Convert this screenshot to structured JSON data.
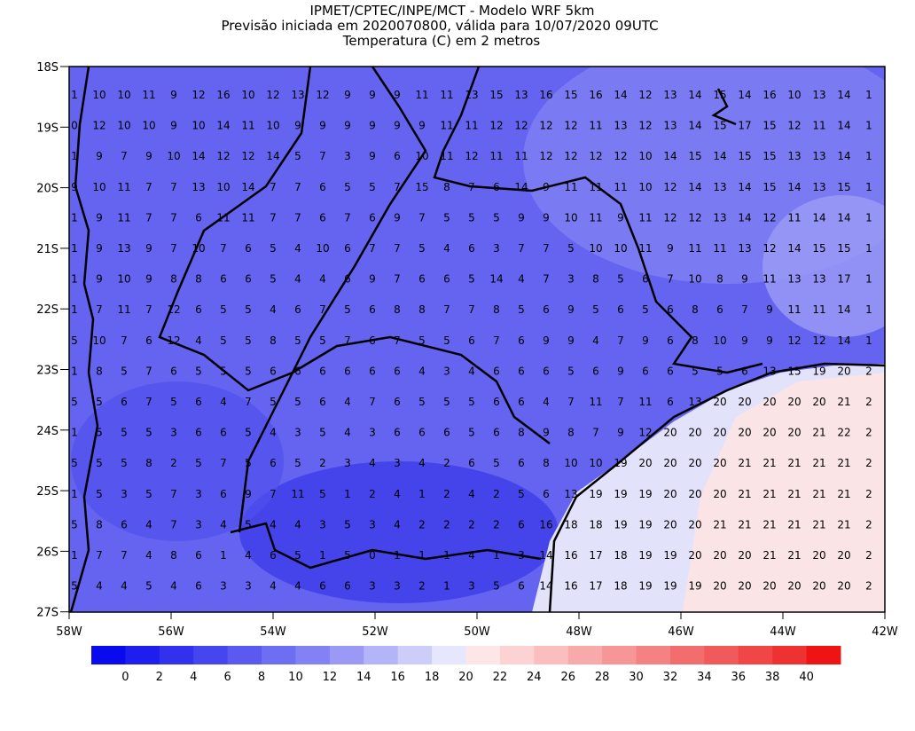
{
  "header": {
    "line1": "IPMET/CPTEC/INPE/MCT - Modelo WRF 5km",
    "line2": "Previsão iniciada em 2020070800, válida para 10/07/2020 09UTC",
    "line3": "Temperatura (C) em 2 metros"
  },
  "map": {
    "lat_labels": [
      "18S",
      "19S",
      "20S",
      "21S",
      "22S",
      "23S",
      "24S",
      "25S",
      "26S",
      "27S"
    ],
    "lon_labels": [
      "58W",
      "56W",
      "54W",
      "52W",
      "50W",
      "48W",
      "46W",
      "44W",
      "42W"
    ],
    "grid_values": [
      [
        1,
        10,
        10,
        11,
        9,
        12,
        16,
        10,
        12,
        13,
        12,
        9,
        9,
        9,
        11,
        11,
        13,
        15,
        13,
        16,
        15,
        16,
        14,
        12,
        13,
        14,
        15,
        14,
        16,
        10,
        13,
        14,
        1
      ],
      [
        0,
        12,
        10,
        10,
        9,
        10,
        14,
        11,
        10,
        9,
        9,
        9,
        9,
        9,
        9,
        11,
        11,
        12,
        12,
        12,
        12,
        11,
        13,
        12,
        13,
        14,
        15,
        17,
        15,
        12,
        11,
        14,
        1
      ],
      [
        1,
        9,
        7,
        9,
        10,
        14,
        12,
        12,
        14,
        5,
        7,
        3,
        9,
        6,
        10,
        11,
        12,
        11,
        11,
        12,
        12,
        12,
        12,
        10,
        14,
        15,
        14,
        15,
        15,
        13,
        13,
        14,
        1
      ],
      [
        9,
        10,
        11,
        7,
        7,
        13,
        10,
        14,
        7,
        7,
        6,
        5,
        5,
        7,
        15,
        8,
        7,
        6,
        14,
        9,
        11,
        11,
        11,
        10,
        12,
        14,
        13,
        14,
        15,
        14,
        13,
        15,
        1
      ],
      [
        1,
        9,
        11,
        7,
        7,
        6,
        11,
        11,
        7,
        7,
        6,
        7,
        6,
        9,
        7,
        5,
        5,
        5,
        9,
        9,
        10,
        11,
        9,
        11,
        12,
        12,
        13,
        14,
        12,
        11,
        14,
        14,
        1
      ],
      [
        1,
        9,
        13,
        9,
        7,
        10,
        7,
        6,
        5,
        4,
        10,
        6,
        7,
        7,
        5,
        4,
        6,
        3,
        7,
        7,
        5,
        10,
        10,
        11,
        9,
        11,
        11,
        13,
        12,
        14,
        15,
        15,
        1
      ],
      [
        1,
        9,
        10,
        9,
        8,
        8,
        6,
        6,
        5,
        4,
        4,
        6,
        9,
        7,
        6,
        6,
        5,
        14,
        4,
        7,
        3,
        8,
        5,
        6,
        7,
        10,
        8,
        9,
        11,
        13,
        13,
        17,
        1
      ],
      [
        1,
        7,
        11,
        7,
        12,
        6,
        5,
        5,
        4,
        6,
        7,
        5,
        6,
        8,
        8,
        7,
        7,
        8,
        5,
        6,
        9,
        5,
        6,
        5,
        6,
        8,
        6,
        7,
        9,
        11,
        11,
        14,
        1
      ],
      [
        5,
        10,
        7,
        6,
        12,
        4,
        5,
        5,
        8,
        5,
        5,
        7,
        6,
        7,
        5,
        5,
        6,
        7,
        6,
        9,
        9,
        4,
        7,
        9,
        6,
        8,
        10,
        9,
        9,
        12,
        12,
        14,
        1
      ],
      [
        1,
        8,
        5,
        7,
        6,
        5,
        5,
        5,
        6,
        6,
        6,
        6,
        6,
        6,
        4,
        3,
        4,
        6,
        6,
        6,
        5,
        6,
        9,
        6,
        6,
        5,
        5,
        6,
        13,
        15,
        19,
        20,
        2
      ],
      [
        5,
        5,
        6,
        7,
        5,
        6,
        4,
        7,
        5,
        5,
        6,
        4,
        7,
        6,
        5,
        5,
        5,
        6,
        6,
        4,
        7,
        11,
        7,
        11,
        6,
        13,
        20,
        20,
        20,
        20,
        20,
        21,
        2
      ],
      [
        1,
        5,
        5,
        5,
        3,
        6,
        6,
        5,
        4,
        3,
        5,
        4,
        3,
        6,
        6,
        6,
        5,
        6,
        8,
        9,
        8,
        7,
        9,
        12,
        20,
        20,
        20,
        20,
        20,
        20,
        21,
        22,
        2
      ],
      [
        5,
        5,
        5,
        8,
        2,
        5,
        7,
        5,
        6,
        5,
        2,
        3,
        4,
        3,
        4,
        2,
        6,
        5,
        6,
        8,
        10,
        10,
        19,
        20,
        20,
        20,
        20,
        21,
        21,
        21,
        21,
        21,
        2
      ],
      [
        1,
        5,
        3,
        5,
        7,
        3,
        6,
        9,
        7,
        11,
        5,
        1,
        2,
        4,
        1,
        2,
        4,
        2,
        5,
        6,
        13,
        19,
        19,
        19,
        20,
        20,
        20,
        21,
        21,
        21,
        21,
        21,
        2
      ],
      [
        5,
        8,
        6,
        4,
        7,
        3,
        4,
        5,
        4,
        4,
        3,
        5,
        3,
        4,
        2,
        2,
        2,
        2,
        6,
        16,
        18,
        18,
        19,
        19,
        20,
        20,
        21,
        21,
        21,
        21,
        21,
        21,
        2
      ],
      [
        1,
        7,
        7,
        4,
        8,
        6,
        1,
        4,
        6,
        5,
        1,
        5,
        0,
        1,
        1,
        1,
        4,
        1,
        3,
        14,
        16,
        17,
        18,
        19,
        19,
        20,
        20,
        20,
        21,
        21,
        20,
        20,
        2
      ],
      [
        5,
        4,
        4,
        5,
        4,
        6,
        3,
        3,
        4,
        4,
        6,
        6,
        3,
        3,
        2,
        1,
        3,
        5,
        6,
        14,
        16,
        17,
        18,
        19,
        19,
        19,
        20,
        20,
        20,
        20,
        20,
        20,
        2
      ]
    ]
  },
  "colorbar": {
    "labels": [
      0,
      2,
      4,
      6,
      8,
      10,
      12,
      14,
      16,
      18,
      20,
      22,
      24,
      26,
      28,
      30,
      32,
      34,
      36,
      38,
      40
    ],
    "colors": [
      "#0a0aee",
      "#1e1eee",
      "#3232ee",
      "#4646f0",
      "#5a5af0",
      "#6e6ef2",
      "#8282f4",
      "#9a9af6",
      "#b4b4f8",
      "#cdcdfa",
      "#e6e6fc",
      "#fde6e6",
      "#fcd2d2",
      "#fabebe",
      "#f8aaaa",
      "#f69696",
      "#f48282",
      "#f26e6e",
      "#f05a5a",
      "#f04646",
      "#ee3232",
      "#ee1414"
    ]
  }
}
